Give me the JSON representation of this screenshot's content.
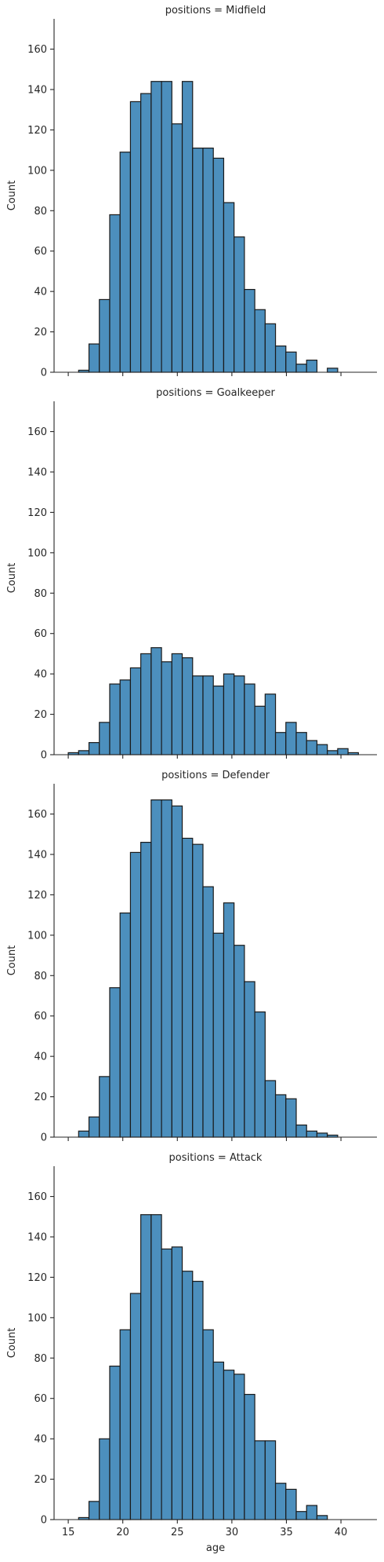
{
  "chart_data": {
    "type": "bar",
    "xlabel": "age",
    "ylabel": "Count",
    "ylim": [
      0,
      175
    ],
    "xlim": [
      13.7,
      43.3
    ],
    "bin_start": 15.0,
    "bin_width": 0.95,
    "xticks": [
      15,
      20,
      25,
      30,
      35,
      40
    ],
    "yticks": [
      0,
      20,
      40,
      60,
      80,
      100,
      120,
      140,
      160
    ],
    "grid": false,
    "facets": [
      {
        "title": "positions = Midfield",
        "values": [
          0,
          1,
          14,
          36,
          78,
          109,
          134,
          138,
          144,
          144,
          123,
          144,
          111,
          111,
          106,
          84,
          67,
          41,
          31,
          24,
          13,
          10,
          4,
          6,
          0,
          2,
          0
        ]
      },
      {
        "title": "positions = Goalkeeper",
        "values": [
          1,
          2,
          6,
          16,
          35,
          37,
          43,
          50,
          53,
          46,
          50,
          48,
          39,
          39,
          34,
          40,
          39,
          35,
          24,
          30,
          11,
          16,
          11,
          7,
          5,
          2,
          3,
          1
        ]
      },
      {
        "title": "positions = Defender",
        "values": [
          0,
          3,
          10,
          30,
          74,
          111,
          141,
          146,
          167,
          167,
          164,
          148,
          145,
          124,
          101,
          116,
          95,
          77,
          62,
          28,
          21,
          19,
          6,
          3,
          2,
          1
        ]
      },
      {
        "title": "positions = Attack",
        "values": [
          0,
          1,
          9,
          40,
          76,
          94,
          112,
          151,
          151,
          134,
          135,
          123,
          118,
          94,
          78,
          74,
          72,
          62,
          39,
          39,
          18,
          15,
          4,
          7,
          2
        ]
      }
    ]
  }
}
